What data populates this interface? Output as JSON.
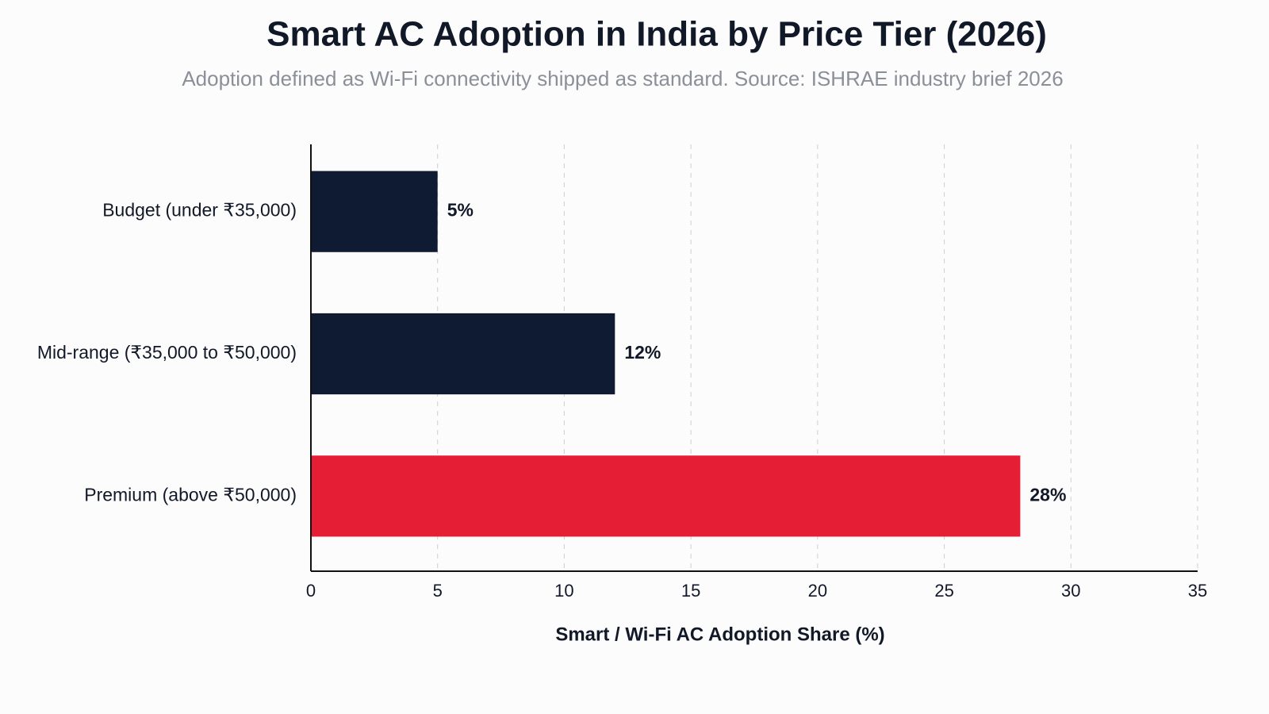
{
  "chart_data": {
    "type": "bar",
    "orientation": "horizontal",
    "title": "Smart AC Adoption in India by Price Tier (2026)",
    "subtitle": "Adoption defined as Wi-Fi connectivity shipped as standard. Source: ISHRAE industry brief 2026",
    "x_label": "Smart / Wi-Fi AC Adoption Share (%)",
    "categories": [
      "Budget (under ₹35,000)",
      "Mid-range (₹35,000 to ₹50,000)",
      "Premium (above ₹50,000)"
    ],
    "values": [
      5,
      12,
      28
    ],
    "value_labels": [
      "5%",
      "12%",
      "28%"
    ],
    "colors": [
      "#0f1a33",
      "#0f1a33",
      "#e61e35"
    ],
    "xlim": [
      0,
      35
    ],
    "xticks": [
      0,
      5,
      10,
      15,
      20,
      25,
      30,
      35
    ],
    "grid": true
  }
}
